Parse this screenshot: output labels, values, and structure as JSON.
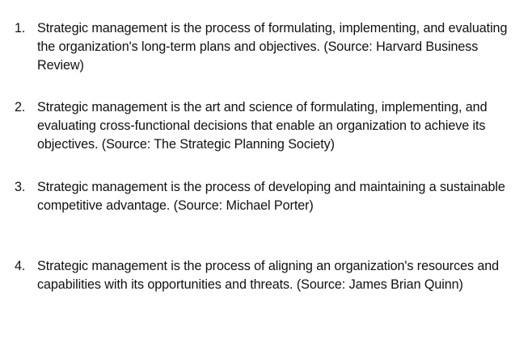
{
  "list": {
    "items": [
      {
        "number": "1.",
        "text": "Strategic management is the process of formulating, implementing, and evaluating the organization's long-term plans and objectives. (Source: Harvard Business Review)"
      },
      {
        "number": "2.",
        "text": "Strategic management is the art and science of formulating, implementing, and evaluating cross-functional decisions that enable an organization to achieve its objectives. (Source: The Strategic Planning Society)"
      },
      {
        "number": "3.",
        "text": "Strategic management is the process of developing and maintaining a sustainable competitive advantage. (Source: Michael Porter)"
      },
      {
        "number": "4.",
        "text": "Strategic management is the process of aligning an organization's resources and capabilities with its opportunities and threats. (Source: James Brian Quinn)"
      }
    ]
  }
}
